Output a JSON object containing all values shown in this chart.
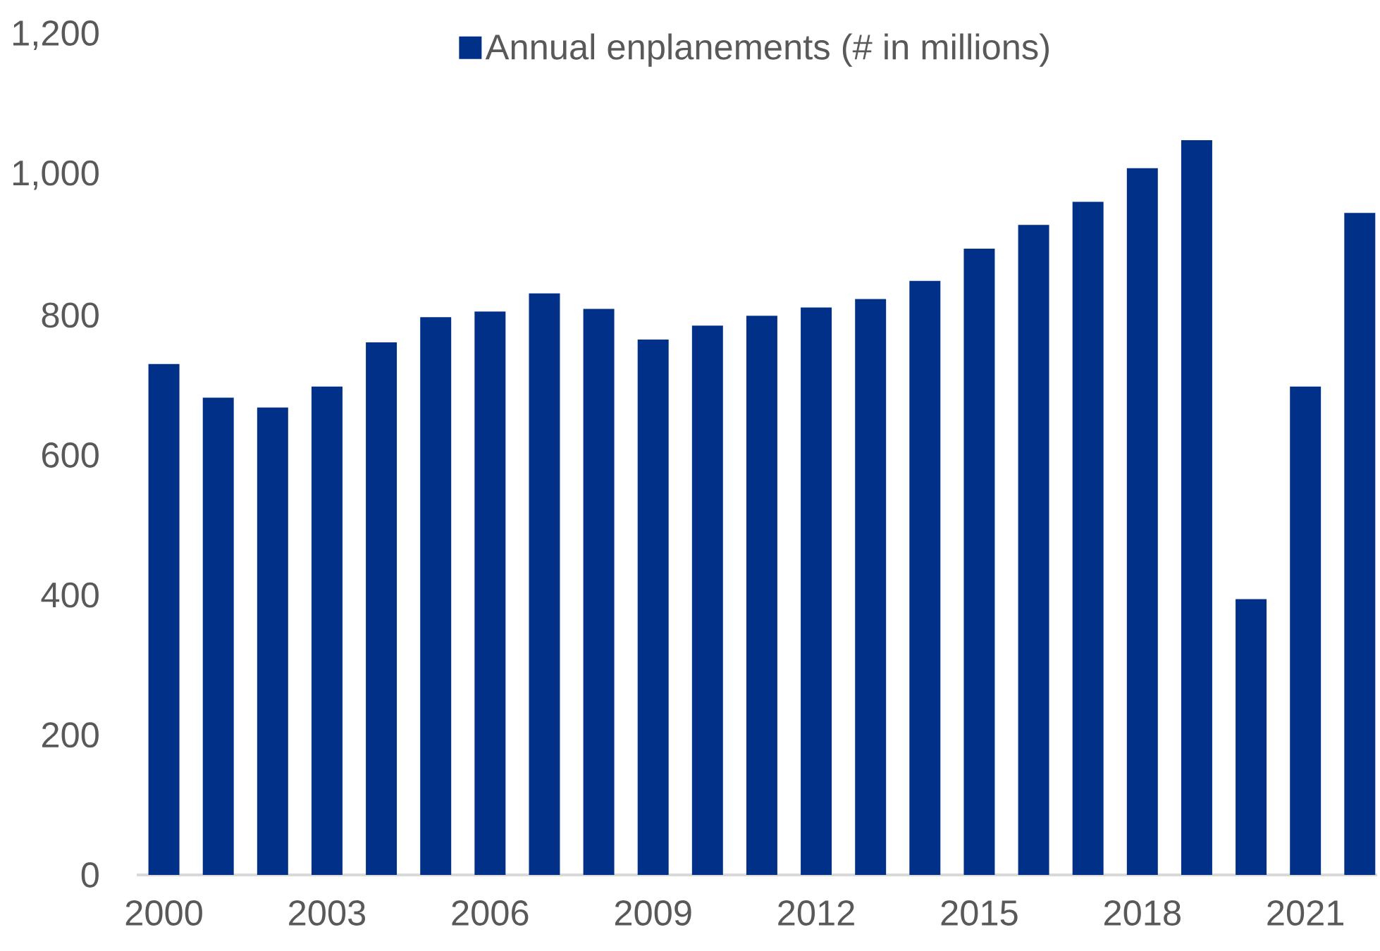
{
  "chart_data": {
    "type": "bar",
    "categories": [
      "2000",
      null,
      null,
      "2003",
      null,
      null,
      "2006",
      null,
      null,
      "2009",
      null,
      null,
      "2012",
      null,
      null,
      "2015",
      null,
      null,
      "2018",
      null,
      null,
      "2021",
      null
    ],
    "series": [
      {
        "name": "Annual enplanements (# in millions)",
        "color": "#003087",
        "values": [
          730,
          682,
          668,
          698,
          761,
          797,
          805,
          831,
          809,
          765,
          785,
          799,
          811,
          823,
          849,
          895,
          929,
          962,
          1010,
          1050,
          394,
          698,
          946
        ]
      }
    ],
    "ylim": [
      0,
      1200
    ],
    "yticks": [
      0,
      200,
      400,
      600,
      800,
      {
        "value": 1000,
        "label": "1,000"
      },
      {
        "value": 1200,
        "label": "1,200"
      }
    ],
    "legend": "top"
  }
}
